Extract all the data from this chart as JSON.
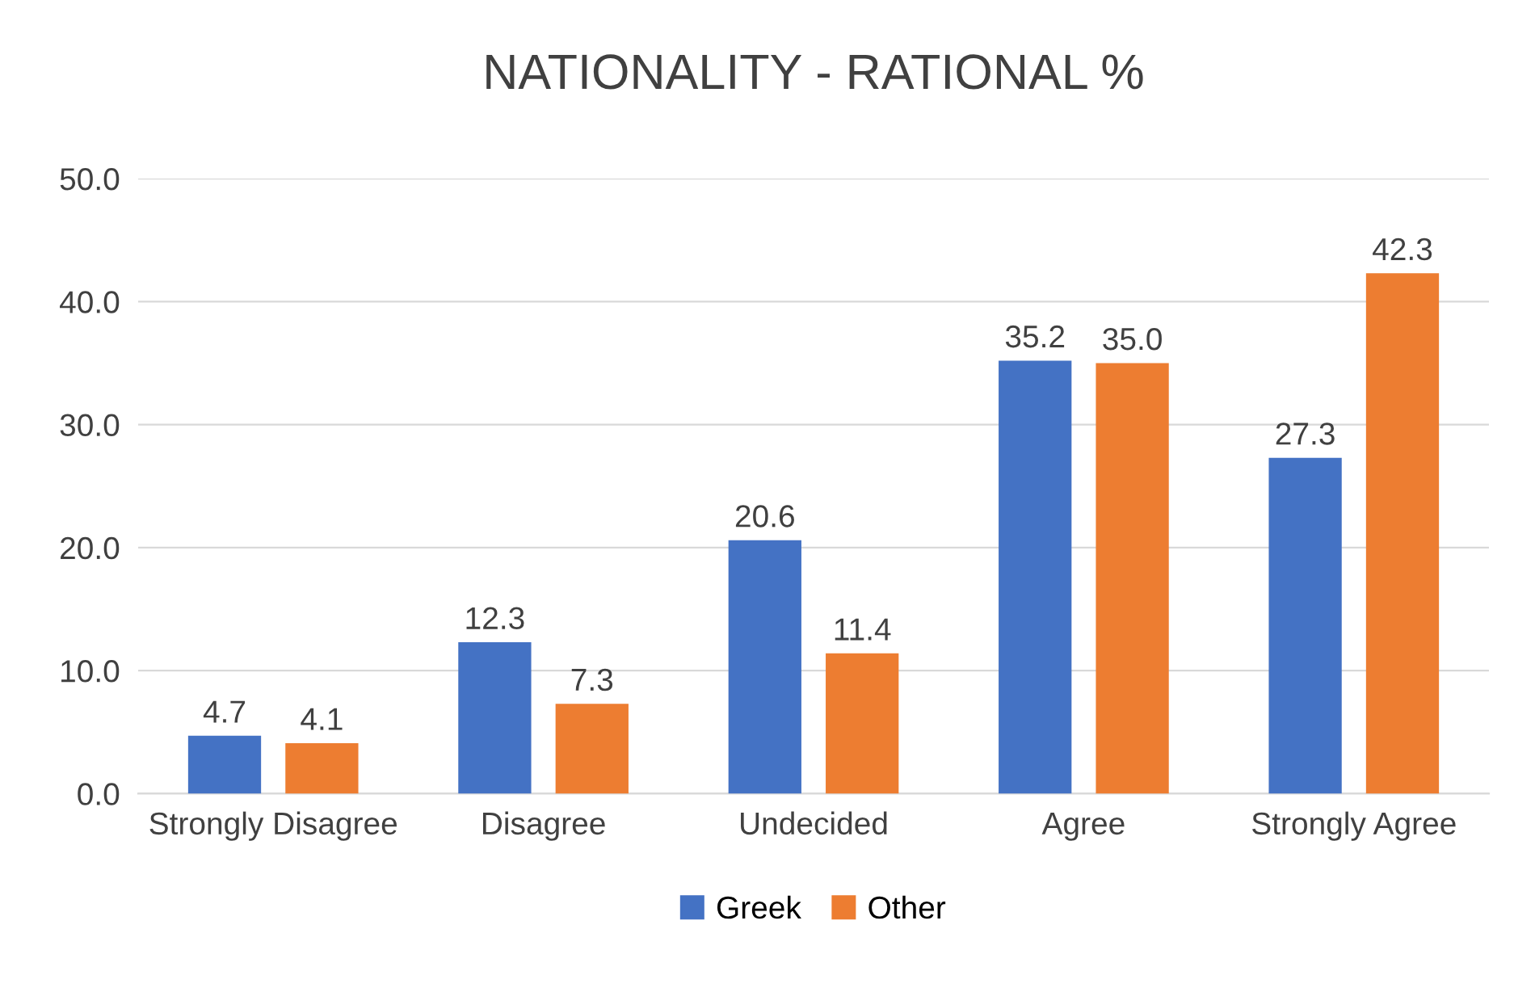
{
  "chart_data": {
    "type": "bar",
    "title": "NATIONALITY - RATIONAL %",
    "categories": [
      "Strongly Disagree",
      "Disagree",
      "Undecided",
      "Agree",
      "Strongly Agree"
    ],
    "series": [
      {
        "name": "Greek",
        "color": "#4472c4",
        "values": [
          4.7,
          12.3,
          20.6,
          35.2,
          27.3
        ],
        "value_labels": [
          "4.7",
          "12.3",
          "20.6",
          "35.2",
          "27.3"
        ]
      },
      {
        "name": "Other",
        "color": "#ed7d31",
        "values": [
          4.1,
          7.3,
          11.4,
          35.0,
          42.3
        ],
        "value_labels": [
          "4.1",
          "7.3",
          "11.4",
          "35.0",
          "42.3"
        ]
      }
    ],
    "ylim": [
      0,
      50
    ],
    "yticks": [
      {
        "value": 0,
        "label": "0.0"
      },
      {
        "value": 10,
        "label": "10.0"
      },
      {
        "value": 20,
        "label": "20.0"
      },
      {
        "value": 30,
        "label": "30.0"
      },
      {
        "value": 40,
        "label": "40.0"
      },
      {
        "value": 50,
        "label": "50.0"
      }
    ],
    "grid": "y",
    "legend": "bottom"
  }
}
